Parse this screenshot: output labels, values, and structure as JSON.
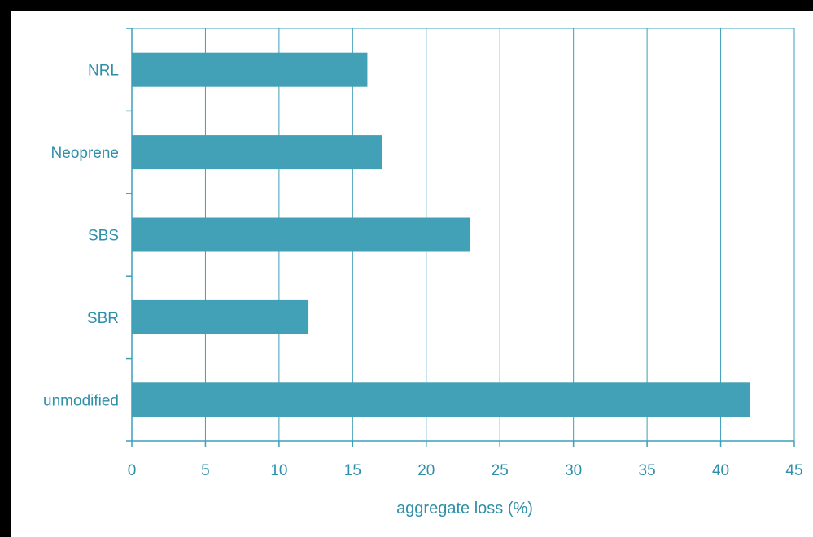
{
  "chart_data": {
    "type": "bar",
    "orientation": "horizontal",
    "categories": [
      "NRL",
      "Neoprene",
      "SBS",
      "SBR",
      "unmodified"
    ],
    "values": [
      16,
      17,
      23,
      12,
      42
    ],
    "xlabel": "aggregate loss (%)",
    "ylabel": "",
    "xlim": [
      0,
      45
    ],
    "xticks": [
      "0",
      "5",
      "10",
      "15",
      "20",
      "25",
      "30",
      "35",
      "40",
      "45"
    ],
    "grid": "vertical",
    "colors": {
      "bar": "#42a0b7",
      "grid": "#3d9fb8",
      "text": "#2e8fa9",
      "frame": "#000000",
      "background": "#ffffff"
    }
  }
}
